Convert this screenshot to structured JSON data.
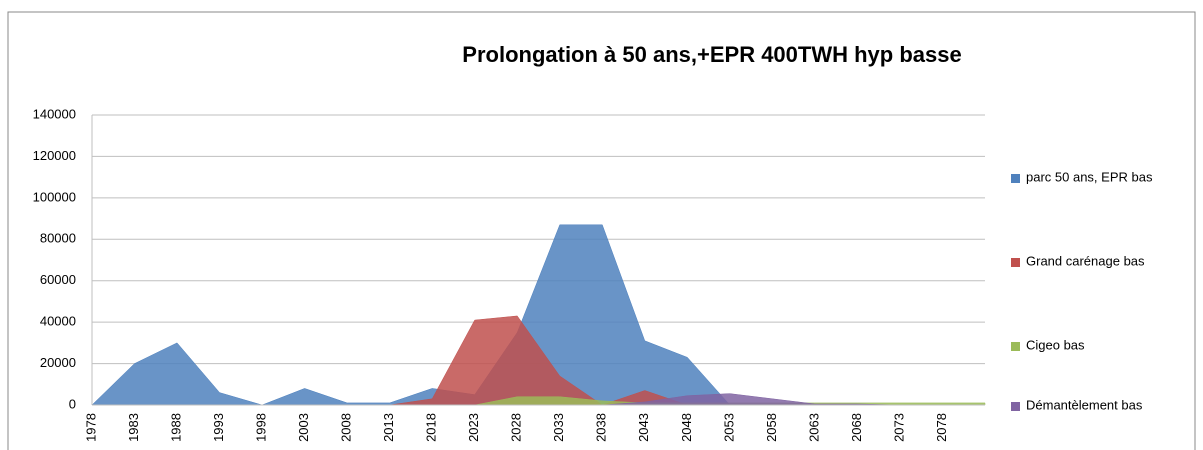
{
  "chart_data": {
    "type": "area",
    "title": "Prolongation à 50 ans,+EPR 400TWH hyp basse",
    "categories": [
      "1978",
      "1983",
      "1988",
      "1993",
      "1998",
      "2003",
      "2008",
      "2013",
      "2018",
      "2023",
      "2028",
      "2033",
      "2038",
      "2043",
      "2048",
      "2053",
      "2058",
      "2063",
      "2068",
      "2073",
      "2078",
      null
    ],
    "series": [
      {
        "name": "parc 50 ans, EPR bas",
        "color": "#4f81bd",
        "values": [
          0,
          20000,
          30000,
          6000,
          0,
          8000,
          1000,
          1000,
          8000,
          5000,
          35000,
          87000,
          87000,
          31000,
          23000,
          0,
          0,
          0,
          0,
          0,
          0,
          0
        ]
      },
      {
        "name": "Grand carénage bas",
        "color": "#c0504d",
        "values": [
          0,
          0,
          0,
          0,
          0,
          0,
          0,
          0,
          3000,
          41000,
          43000,
          14000,
          0,
          7000,
          0,
          0,
          0,
          0,
          0,
          0,
          0,
          0
        ]
      },
      {
        "name": "Cigeo bas",
        "color": "#9bbb59",
        "values": [
          0,
          0,
          0,
          0,
          0,
          0,
          0,
          0,
          0,
          0,
          4000,
          4000,
          2000,
          1000,
          1000,
          1000,
          1000,
          1000,
          1000,
          1000,
          1000,
          1000
        ]
      },
      {
        "name": "Démantèlement   bas",
        "color": "#8064a2",
        "values": [
          0,
          0,
          0,
          0,
          0,
          0,
          0,
          0,
          0,
          0,
          0,
          0,
          0,
          1500,
          4500,
          5500,
          3000,
          500,
          500,
          0,
          0,
          0
        ]
      }
    ],
    "ylim": [
      0,
      140000
    ],
    "yticks": [
      0,
      20000,
      40000,
      60000,
      80000,
      100000,
      120000,
      140000
    ],
    "grid": true,
    "legend": "right"
  }
}
